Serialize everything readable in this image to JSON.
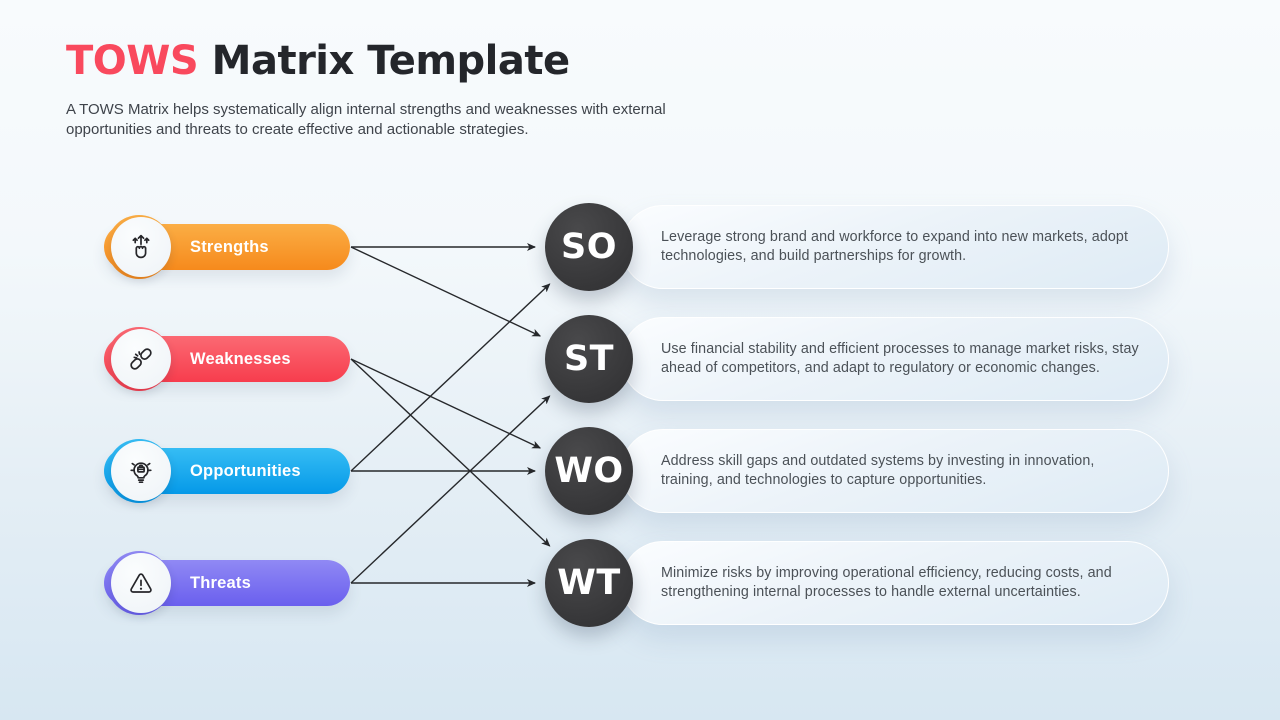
{
  "header": {
    "title_accent": "TOWS",
    "title_rest": " Matrix Template",
    "subtitle": "A TOWS Matrix helps systematically align internal strengths and weaknesses with external opportunities and threats to create effective and actionable strategies."
  },
  "factors": [
    {
      "id": "strengths",
      "label": "Strengths",
      "icon": "swipe-up-hand-icon",
      "color_top": "#FBAE45",
      "color_bottom": "#F68A1C"
    },
    {
      "id": "weaknesses",
      "label": "Weaknesses",
      "icon": "broken-chain-icon",
      "color_top": "#FB6973",
      "color_bottom": "#F73D4D"
    },
    {
      "id": "opportunities",
      "label": "Opportunities",
      "icon": "idea-bulb-icon",
      "color_top": "#36BDF4",
      "color_bottom": "#0599E8"
    },
    {
      "id": "threats",
      "label": "Threats",
      "icon": "warning-triangle-icon",
      "color_top": "#9089F4",
      "color_bottom": "#6A5FEE"
    }
  ],
  "strategies": [
    {
      "id": "SO",
      "label": "SO",
      "description": "Leverage strong brand and workforce to expand into new markets, adopt technologies, and build partnerships for growth."
    },
    {
      "id": "ST",
      "label": "ST",
      "description": "Use financial stability and efficient processes to manage market risks, stay ahead of competitors, and adapt to regulatory or economic changes."
    },
    {
      "id": "WO",
      "label": "WO",
      "description": "Address skill gaps and outdated systems by investing in innovation, training, and technologies to capture opportunities."
    },
    {
      "id": "WT",
      "label": "WT",
      "description": "Minimize risks by improving operational efficiency, reducing costs, and strengthening internal processes to handle external uncertainties."
    }
  ],
  "connections": [
    {
      "from": "strengths",
      "to": "SO"
    },
    {
      "from": "strengths",
      "to": "ST"
    },
    {
      "from": "weaknesses",
      "to": "WO"
    },
    {
      "from": "weaknesses",
      "to": "WT"
    },
    {
      "from": "opportunities",
      "to": "SO"
    },
    {
      "from": "opportunities",
      "to": "WO"
    },
    {
      "from": "threats",
      "to": "ST"
    },
    {
      "from": "threats",
      "to": "WT"
    }
  ],
  "colors": {
    "title_accent": "#F9495D",
    "title_text": "#24262B",
    "arrow": "#26282B",
    "circle_dark": "#353537",
    "circle_dark_highlight": "#49494B",
    "background_top": "#F8FBFD",
    "background_bottom": "#D7E7F2"
  }
}
